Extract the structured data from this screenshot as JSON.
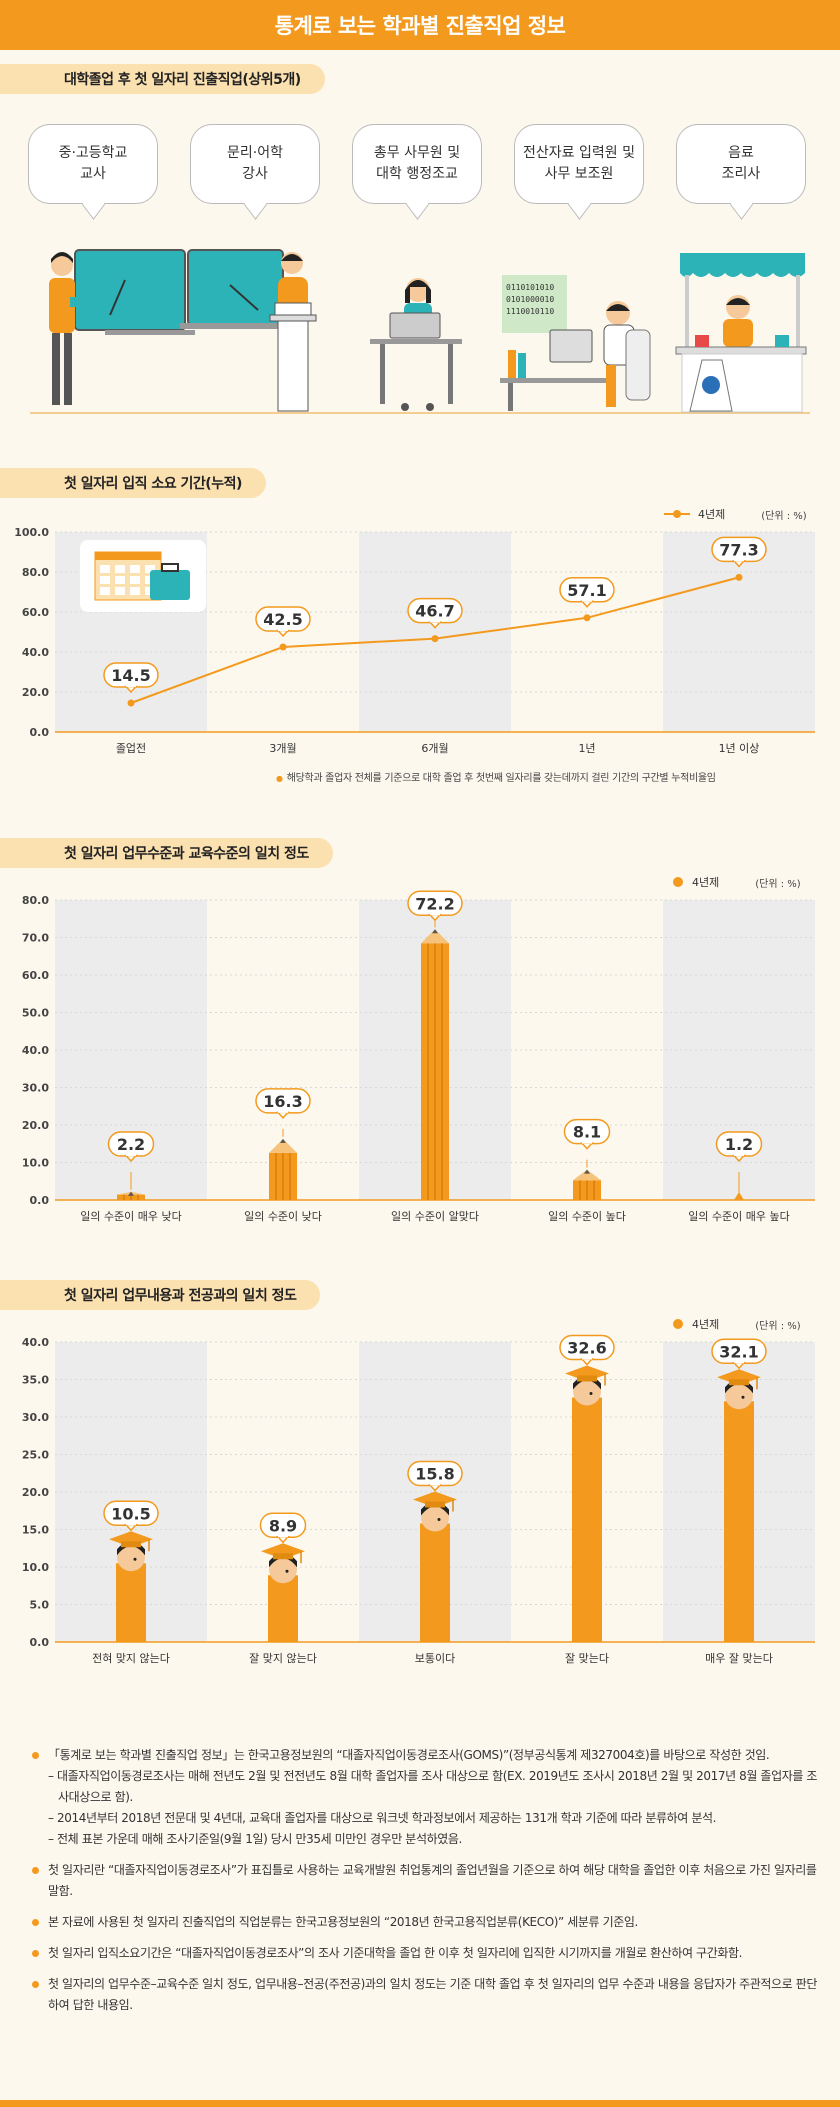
{
  "page_title": "통계로 보는 학과별 진출직업 정보",
  "colors": {
    "accent": "#f39a1e",
    "accent_light": "#fbe0b0",
    "band": "#ececec",
    "background": "#fdf8ee"
  },
  "section1": {
    "title": "대학졸업 후 첫 일자리 진출직업(상위5개)",
    "jobs": [
      "중·고등학교\n교사",
      "문리·어학\n강사",
      "총무 사무원 및\n대학 행정조교",
      "전산자료 입력원 및\n사무 보조원",
      "음료\n조리사"
    ],
    "binary_lines": [
      "0110101010",
      "0101000010",
      "1110010110"
    ]
  },
  "section2": {
    "title": "첫 일자리 입직 소요 기간(누적)",
    "legend": "4년제",
    "unit": "(단위 : %)",
    "note": "해당학과 졸업자 전체를 기준으로 대학 졸업 후 첫번째 일자리를 갖는데까지 걸린 기간의 구간별 누적비율임"
  },
  "section3": {
    "title": "첫 일자리 업무수준과 교육수준의 일치 정도",
    "legend": "4년제",
    "unit": "(단위 : %)"
  },
  "section4": {
    "title": "첫 일자리 업무내용과 전공과의 일치 정도",
    "legend": "4년제",
    "unit": "(단위 : %)"
  },
  "chart_data": [
    {
      "type": "line",
      "categories": [
        "졸업전",
        "3개월",
        "6개월",
        "1년",
        "1년 이상"
      ],
      "series": [
        {
          "name": "4년제",
          "values": [
            14.5,
            42.5,
            46.7,
            57.1,
            77.3
          ]
        }
      ],
      "data_labels": [
        "14.5",
        "42.5",
        "46.7",
        "57.1",
        "77.3"
      ],
      "yticks": [
        "0.0",
        "20.0",
        "40.0",
        "60.0",
        "80.0",
        "100.0"
      ],
      "ylim": [
        0,
        100
      ]
    },
    {
      "type": "bar",
      "categories": [
        "일의 수준이 매우 낮다",
        "일의 수준이 낮다",
        "일의 수준이 알맞다",
        "일의 수준이 높다",
        "일의 수준이 매우 높다"
      ],
      "series": [
        {
          "name": "4년제",
          "values": [
            2.2,
            16.3,
            72.2,
            8.1,
            1.2
          ]
        }
      ],
      "data_labels": [
        "2.2",
        "16.3",
        "72.2",
        "8.1",
        "1.2"
      ],
      "yticks": [
        "0.0",
        "10.0",
        "20.0",
        "30.0",
        "40.0",
        "50.0",
        "60.0",
        "70.0",
        "80.0"
      ],
      "ylim": [
        0,
        80
      ]
    },
    {
      "type": "bar",
      "categories": [
        "전혀 맞지 않는다",
        "잘 맞지 않는다",
        "보통이다",
        "잘 맞는다",
        "매우 잘 맞는다"
      ],
      "series": [
        {
          "name": "4년제",
          "values": [
            10.5,
            8.9,
            15.8,
            32.6,
            32.1
          ]
        }
      ],
      "data_labels": [
        "10.5",
        "8.9",
        "15.8",
        "32.6",
        "32.1"
      ],
      "yticks": [
        "0.0",
        "5.0",
        "10.0",
        "15.0",
        "20.0",
        "25.0",
        "30.0",
        "35.0",
        "40.0"
      ],
      "ylim": [
        0,
        40
      ]
    }
  ],
  "footnotes": [
    {
      "text": "「통계로 보는 학과별 진출직업 정보」는 한국고용정보원의 “대졸자직업이동경로조사(GOMS)”(정부공식통계 제327004호)를 바탕으로 작성한 것임.",
      "subs": [
        "– 대졸자직업이동경로조사는 매해 전년도 2월 및 전전년도 8월 대학 졸업자를 조사 대상으로 함(EX. 2019년도 조사시 2018년 2월 및 2017년 8월 졸업자를 조사대상으로 함).",
        "– 2014년부터 2018년 전문대 및 4년대, 교육대 졸업자를 대상으로 워크넷 학과정보에서 제공하는 131개 학과 기준에 따라 분류하여 분석.",
        "– 전체 표본 가운데 매해 조사기준일(9월 1일) 당시 만35세 미만인 경우만 분석하였음."
      ]
    },
    {
      "text": "첫 일자리란 “대졸자직업이동경로조사”가 표집틀로 사용하는 교육개발원 취업통계의 졸업년월을 기준으로 하여 해당 대학을 졸업한 이후 처음으로 가진 일자리를 말함.",
      "subs": []
    },
    {
      "text": "본 자료에 사용된 첫 일자리 진출직업의 직업분류는 한국고용정보원의 “2018년 한국고용직업분류(KECO)” 세분류 기준임.",
      "subs": []
    },
    {
      "text": "첫 일자리 입직소요기간은 “대졸자직업이동경로조사”의 조사 기준대학을 졸업 한 이후 첫 일자리에 입직한 시기까지를 개월로 환산하여 구간화함.",
      "subs": []
    },
    {
      "text": "첫 일자리의 업무수준–교육수준 일치 정도, 업무내용–전공(주전공)과의 일치 정도는 기준 대학 졸업 후 첫 일자리의 업무 수준과 내용을 응답자가 주관적으로 판단하여 답한 내용임.",
      "subs": []
    }
  ]
}
